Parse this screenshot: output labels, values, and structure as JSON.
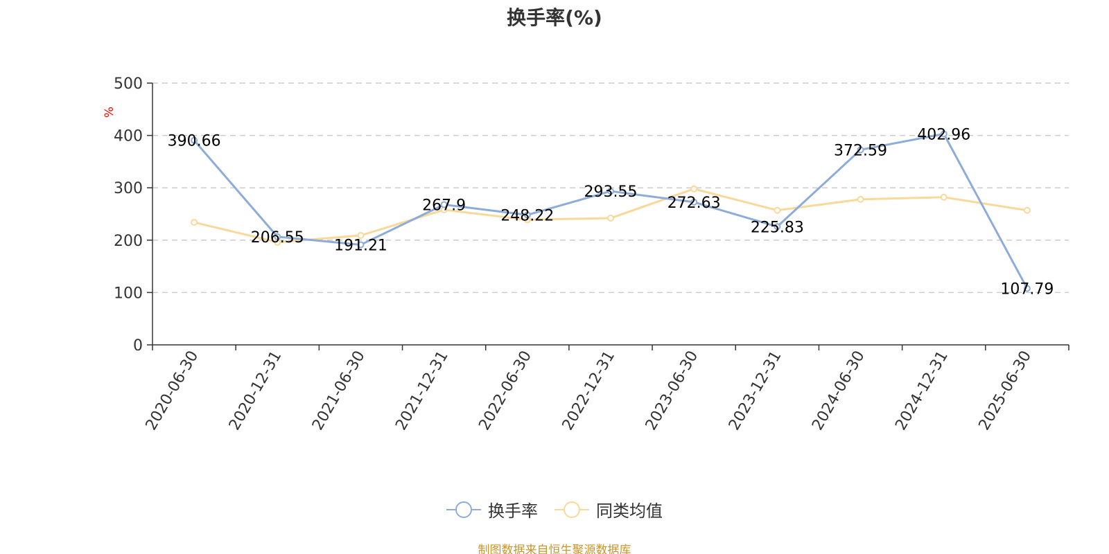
{
  "chart_data": {
    "type": "line",
    "title": "换手率(%)",
    "ylabel": "%",
    "ylim": [
      0,
      500
    ],
    "yticks": [
      "0",
      "100",
      "200",
      "300",
      "400",
      "500"
    ],
    "grid": true,
    "legend_position": "bottom",
    "categories": [
      "2020-06-30",
      "2020-12-31",
      "2021-06-30",
      "2021-12-31",
      "2022-06-30",
      "2022-12-31",
      "2023-06-30",
      "2023-12-31",
      "2024-06-30",
      "2024-12-31",
      "2025-06-30"
    ],
    "series": [
      {
        "name": "换手率",
        "color": "#8eacd9",
        "values": [
          390.66,
          206.55,
          191.21,
          267.9,
          248.22,
          293.55,
          272.63,
          225.83,
          372.59,
          402.96,
          107.79
        ],
        "labels": [
          "390.66",
          "206.55",
          "191.21",
          "267.9",
          "248.22",
          "293.55",
          "272.63",
          "225.83",
          "372.59",
          "402.96",
          "107.79"
        ],
        "show_labels": true
      },
      {
        "name": "同类均值",
        "color": "#f9d99a",
        "values": [
          234,
          196,
          209,
          258,
          239,
          242,
          298,
          257,
          278,
          282,
          257
        ],
        "show_labels": false
      }
    ]
  },
  "source_note": "制图数据来自恒生聚源数据库"
}
